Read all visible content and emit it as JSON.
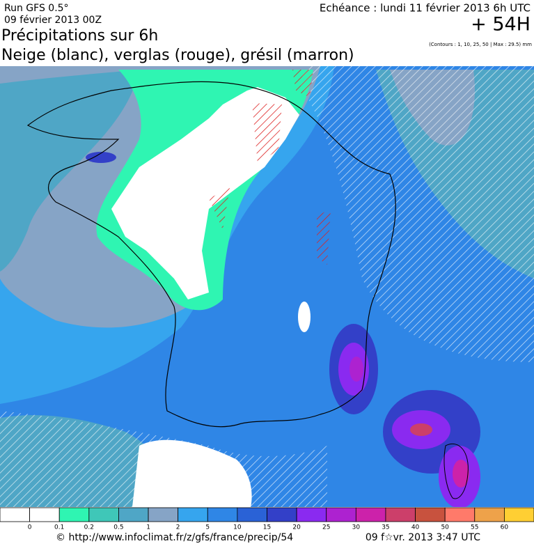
{
  "header": {
    "model": "Run GFS 0.5°",
    "run_date": "09 février 2013 00Z",
    "valid_time": "Echéance : lundi 11 février 2013 6h UTC",
    "lead": "+ 54H",
    "title": "Précipitations sur 6h",
    "subtitle": "Neige (blanc), verglas (rouge), grésil (marron)",
    "contours_note": "(Contours : 1, 10, 25, 50 | Max : 29.5) mm"
  },
  "legend": {
    "labels": [
      0,
      0.1,
      0.2,
      0.5,
      1,
      2,
      5,
      10,
      15,
      20,
      25,
      30,
      35,
      40,
      50,
      55,
      60
    ],
    "colors": [
      "#ffffff",
      "#ffffff",
      "#2ff5b2",
      "#3fc7b8",
      "#4fa6c6",
      "#86a4c6",
      "#36a5ee",
      "#2f86e6",
      "#2a62d6",
      "#3340c8",
      "#8a2af0",
      "#ad22d0",
      "#cc22aa",
      "#cc3f6a",
      "#c8523e",
      "#ff7a6a",
      "#eea24a",
      "#ffcf33"
    ]
  },
  "footer": {
    "url": "© http://www.infoclimat.fr/z/gfs/france/precip/54",
    "generated": "09 f☆vr. 2013  3:47 UTC"
  }
}
